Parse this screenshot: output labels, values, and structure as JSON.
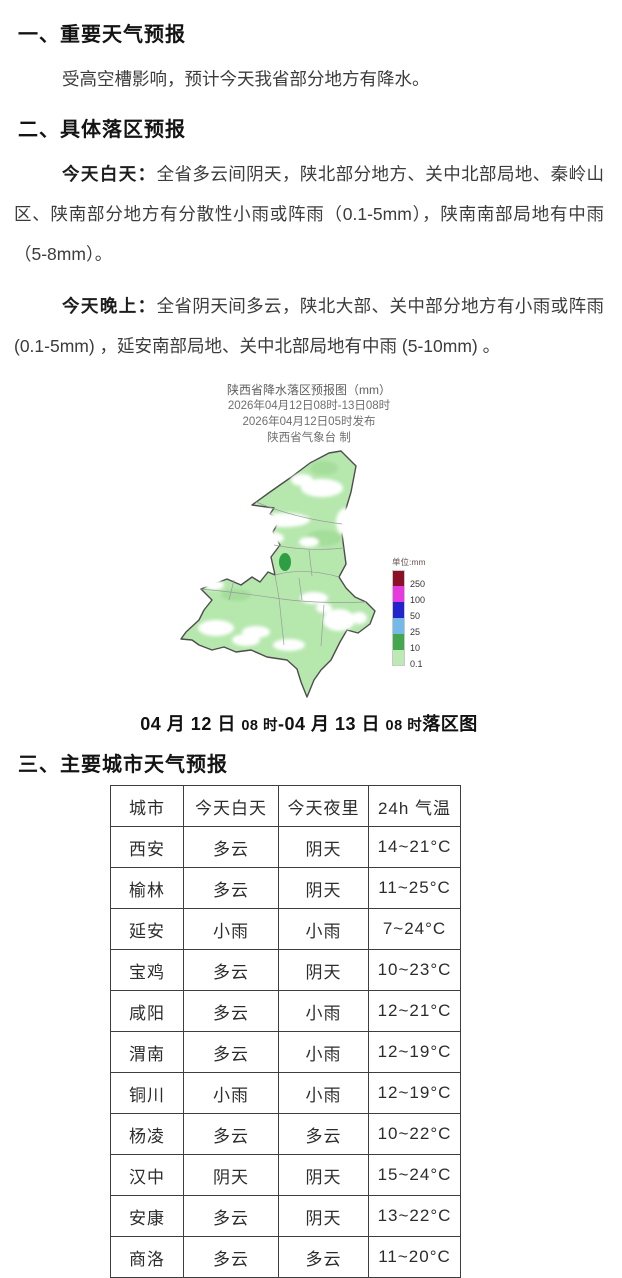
{
  "sections": {
    "s1_heading": "一、重要天气预报",
    "s1_para": "受高空槽影响，预计今天我省部分地方有降水。",
    "s2_heading": "二、具体落区预报",
    "s2_day_label": "今天白天：",
    "s2_day_text": "全省多云间阴天，陕北部分地方、关中北部局地、秦岭山区、陕南部分地方有分散性小雨或阵雨（0.1-5mm），陕南南部局地有中雨（5-8mm）。",
    "s2_night_label": "今天晚上：",
    "s2_night_text": "全省阴天间多云，陕北大部、关中部分地方有小雨或阵雨 (0.1-5mm) ，延安南部局地、关中北部局地有中雨 (5-10mm) 。",
    "s3_heading": "三、主要城市天气预报"
  },
  "map": {
    "title_lines": [
      "陕西省降水落区预报图（mm）",
      "2026年04月12日08时-13日08时",
      "2026年04月12日05时发布",
      "陕西省气象台 制"
    ],
    "legend_title": "单位:mm",
    "legend": [
      {
        "label": "250",
        "color": "#8e1028"
      },
      {
        "label": "100",
        "color": "#e53ae0"
      },
      {
        "label": "50",
        "color": "#2323cd"
      },
      {
        "label": "25",
        "color": "#74b9e8"
      },
      {
        "label": "10",
        "color": "#44a74f"
      },
      {
        "label": "0.1",
        "color": "#bdeab4"
      }
    ],
    "fill_color": "#b6e8ae",
    "heavier_spot_color": "#2e9e44",
    "caption_segments": [
      {
        "text": "04 月 12 日 ",
        "size": "lg"
      },
      {
        "text": "08 时",
        "size": "sm"
      },
      {
        "text": "-04 月 13 日 ",
        "size": "lg"
      },
      {
        "text": "08 时",
        "size": "sm"
      },
      {
        "text": "落区图",
        "size": "lg"
      }
    ]
  },
  "table": {
    "headers": [
      "城市",
      "今天白天",
      "今天夜里",
      "24h 气温"
    ],
    "rows": [
      [
        "西安",
        "多云",
        "阴天",
        "14~21°C"
      ],
      [
        "榆林",
        "多云",
        "阴天",
        "11~25°C"
      ],
      [
        "延安",
        "小雨",
        "小雨",
        "7~24°C"
      ],
      [
        "宝鸡",
        "多云",
        "阴天",
        "10~23°C"
      ],
      [
        "咸阳",
        "多云",
        "小雨",
        "12~21°C"
      ],
      [
        "渭南",
        "多云",
        "小雨",
        "12~19°C"
      ],
      [
        "铜川",
        "小雨",
        "小雨",
        "12~19°C"
      ],
      [
        "杨凌",
        "多云",
        "多云",
        "10~22°C"
      ],
      [
        "汉中",
        "阴天",
        "阴天",
        "15~24°C"
      ],
      [
        "安康",
        "多云",
        "阴天",
        "13~22°C"
      ],
      [
        "商洛",
        "多云",
        "多云",
        "11~20°C"
      ]
    ]
  }
}
